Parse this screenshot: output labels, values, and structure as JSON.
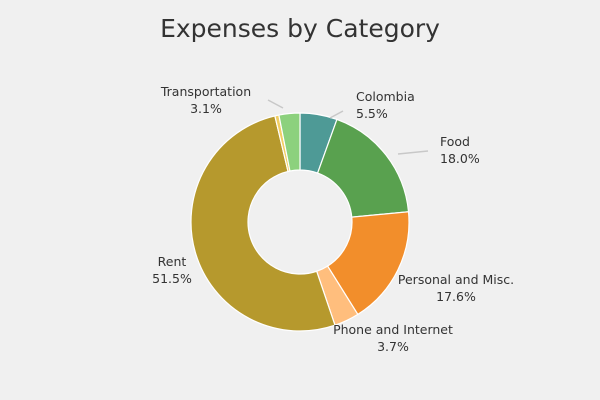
{
  "chart_data": {
    "type": "pie",
    "variant": "donut",
    "title": "Expenses by Category",
    "slices": [
      {
        "label": "Colombia",
        "percent_label": "5.5%",
        "value": 5.5,
        "color": "#4e9a96"
      },
      {
        "label": "Food",
        "percent_label": "18.0%",
        "value": 18.0,
        "color": "#59a14f"
      },
      {
        "label": "Personal and Misc.",
        "percent_label": "17.6%",
        "value": 17.6,
        "color": "#f28e2b"
      },
      {
        "label": "Phone and Internet",
        "percent_label": "3.7%",
        "value": 3.7,
        "color": "#ffbe7d"
      },
      {
        "label": "Rent",
        "percent_label": "51.5%",
        "value": 51.5,
        "color": "#b6992d"
      },
      {
        "label": "",
        "percent_label": "",
        "value": 0.6,
        "color": "#f1ce63"
      },
      {
        "label": "Transportation",
        "percent_label": "3.1%",
        "value": 3.1,
        "color": "#8cd17d"
      }
    ],
    "legend": "none"
  }
}
